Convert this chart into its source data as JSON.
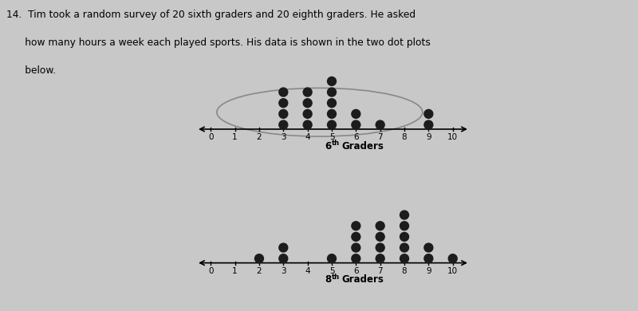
{
  "sixth_graders": {
    "3": 4,
    "4": 4,
    "5": 5,
    "6": 2,
    "7": 1,
    "9": 2
  },
  "eighth_graders": {
    "2": 1,
    "3": 2,
    "5": 1,
    "6": 4,
    "7": 4,
    "8": 5,
    "9": 2,
    "10": 1
  },
  "dot_color": "#1c1c1c",
  "dot_size": 55,
  "bg_color": "#c8c8c8",
  "axis_min": 0,
  "axis_max": 10,
  "sixth_label_num": "6",
  "eighth_label_num": "8",
  "label_suffix": "th Graders"
}
